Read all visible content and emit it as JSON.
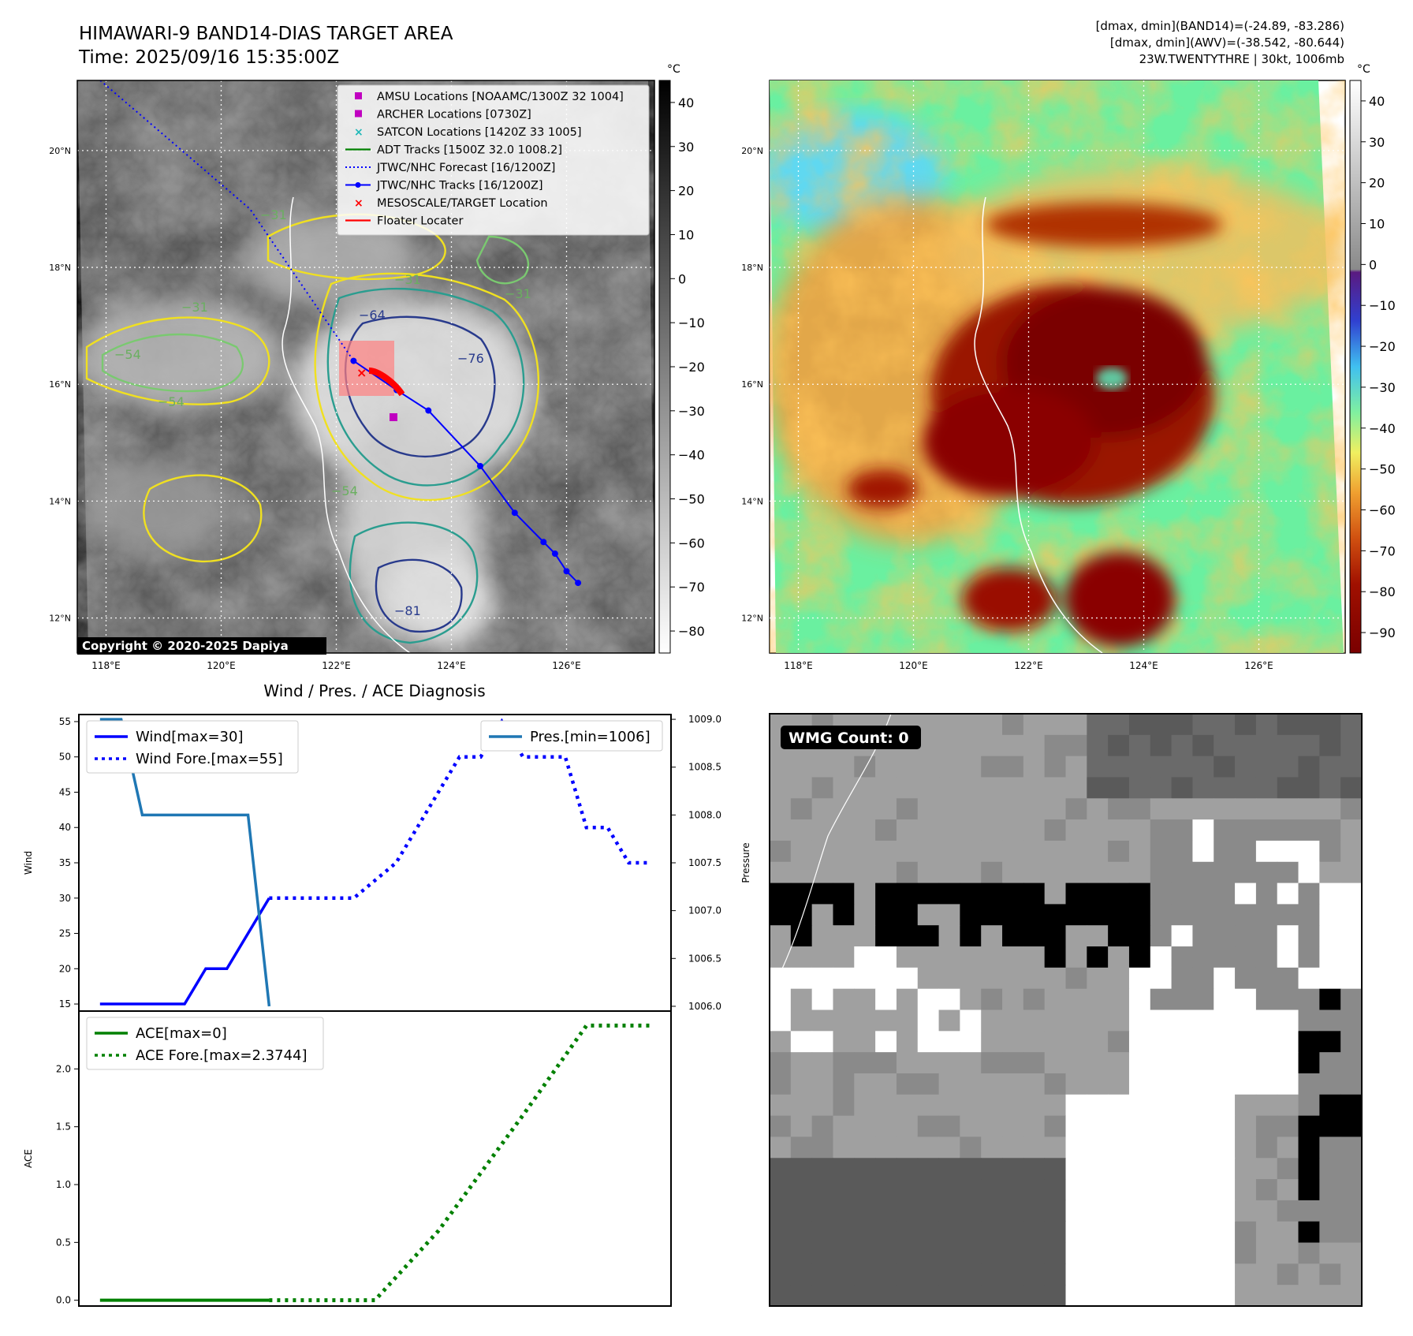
{
  "header": {
    "title": "HIMAWARI-9 BAND14-DIAS TARGET AREA",
    "time": "Time: 2025/09/16 15:35:00Z",
    "stats": [
      "[dmax, dmin](BAND14)=(-24.89, -83.286)",
      "[dmax, dmin](AWV)=(-38.542, -80.644)",
      "23W.TWENTYTHRE | 30kt, 1006mb"
    ]
  },
  "maps": {
    "lat_labels": [
      "20°N",
      "18°N",
      "16°N",
      "14°N",
      "12°N"
    ],
    "lon_labels": [
      "118°E",
      "120°E",
      "122°E",
      "124°E",
      "126°E"
    ],
    "copyright": "Copyright © 2020-2025 Dapiya",
    "cbar_unit": "°C",
    "gray_cbar_ticks": [
      "40",
      "30",
      "20",
      "10",
      "0",
      "−10",
      "−20",
      "−30",
      "−40",
      "−50",
      "−60",
      "−70",
      "−80"
    ],
    "color_cbar_ticks": [
      "40",
      "30",
      "20",
      "10",
      "0",
      "−10",
      "−20",
      "−30",
      "−40",
      "−50",
      "−60",
      "−70",
      "−80",
      "−90"
    ],
    "contour_labels": [
      "−31",
      "−31",
      "−31",
      "−54",
      "−54",
      "−64",
      "−76",
      "−31",
      "−54",
      "−81"
    ],
    "legend": [
      {
        "label": "AMSU Locations [NOAAMC/1300Z 32 1004]",
        "color": "#c000c0",
        "kind": "square"
      },
      {
        "label": "ARCHER Locations [0730Z]",
        "color": "#c000c0",
        "kind": "square"
      },
      {
        "label": "SATCON Locations [1420Z 33 1005]",
        "color": "#20b8b8",
        "kind": "x"
      },
      {
        "label": "ADT Tracks [1500Z 32.0 1008.2]",
        "color": "#008000",
        "kind": "line"
      },
      {
        "label": "JTWC/NHC Forecast [16/1200Z]",
        "color": "#0000ff",
        "kind": "dotted"
      },
      {
        "label": "JTWC/NHC Tracks [16/1200Z]",
        "color": "#0000ff",
        "kind": "line-dot"
      },
      {
        "label": "MESOSCALE/TARGET Location",
        "color": "#ff0000",
        "kind": "x"
      },
      {
        "label": "Floater Locater",
        "color": "#ff0000",
        "kind": "line"
      }
    ],
    "track_points_lonlat": [
      [
        122.3,
        16.4
      ],
      [
        123.05,
        15.9
      ],
      [
        123.6,
        15.55
      ],
      [
        124.5,
        14.6
      ],
      [
        125.1,
        13.8
      ],
      [
        125.6,
        13.3
      ],
      [
        125.8,
        13.1
      ],
      [
        126.0,
        12.8
      ],
      [
        126.2,
        12.6
      ]
    ],
    "forecast_points_lonlat": [
      [
        117.9,
        21.2
      ],
      [
        120.5,
        19.0
      ],
      [
        122.3,
        16.4
      ]
    ]
  },
  "wmg": {
    "label": "WMG Count: 0"
  },
  "chart_data": [
    {
      "type": "line",
      "title": "Wind / Pres. / ACE Diagnosis",
      "ylabel": "Wind",
      "ylim": [
        14,
        56
      ],
      "y_ticks": [
        15,
        20,
        25,
        30,
        35,
        40,
        45,
        50,
        55
      ],
      "series": [
        {
          "name": "Wind[max=30]",
          "style": "solid",
          "color": "#0000ff",
          "x": [
            0,
            4,
            5,
            6,
            8
          ],
          "values": [
            15,
            15,
            20,
            20,
            30
          ]
        },
        {
          "name": "Wind Fore.[max=55]",
          "style": "dotted",
          "color": "#0000ff",
          "x": [
            8,
            12,
            14,
            16,
            17,
            18,
            19,
            20,
            22,
            23,
            24,
            25,
            26
          ],
          "values": [
            30,
            30,
            35,
            45,
            50,
            50,
            55,
            50,
            50,
            40,
            40,
            35,
            35
          ]
        }
      ],
      "secondary_axis": {
        "ylabel": "Pressure",
        "ylim": [
          1005.95,
          1009.05
        ],
        "y_ticks": [
          1006.0,
          1006.5,
          1007.0,
          1007.5,
          1008.0,
          1008.5,
          1009.0
        ],
        "series": [
          {
            "name": "Pres.[min=1006]",
            "style": "solid",
            "color": "#1f77b4",
            "x": [
              0,
              1,
              2,
              7,
              8
            ],
            "values": [
              1009,
              1009,
              1008,
              1008,
              1006
            ]
          }
        ]
      },
      "x_visible_range": [
        -1,
        27
      ]
    },
    {
      "type": "line",
      "ylabel": "ACE",
      "ylim": [
        -0.05,
        2.5
      ],
      "y_ticks": [
        0.0,
        0.5,
        1.0,
        1.5,
        2.0
      ],
      "series": [
        {
          "name": "ACE[max=0]",
          "style": "solid",
          "color": "#008000",
          "x": [
            0,
            8
          ],
          "values": [
            0,
            0
          ]
        },
        {
          "name": "ACE Fore.[max=2.3744]",
          "style": "dotted",
          "color": "#008000",
          "x": [
            8,
            13,
            16,
            20,
            23,
            25,
            26
          ],
          "values": [
            0,
            0,
            0.6,
            1.6,
            2.3744,
            2.3744,
            2.3744
          ]
        }
      ],
      "x_visible_range": [
        -1,
        27
      ]
    }
  ],
  "colors": {
    "legend_bg": "#ffffff",
    "cloud_contour_yellow": "#f0e020",
    "cloud_contour_green": "#2a9d8f",
    "cloud_contour_navy": "#283a8c"
  }
}
